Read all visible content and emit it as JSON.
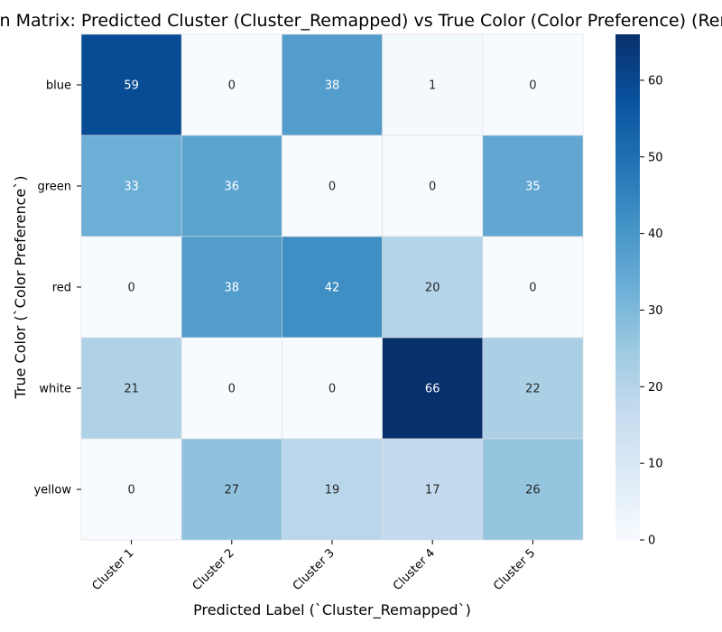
{
  "chart_data": {
    "type": "heatmap",
    "title": "Confusion Matrix: Predicted Cluster (Cluster_Remapped) vs True Color (Color Preference) (Remapped)",
    "xlabel": "Predicted Label (`Cluster_Remapped`)",
    "ylabel": "True Color (`Color Preference`)",
    "x_categories": [
      "Cluster 1",
      "Cluster 2",
      "Cluster 3",
      "Cluster 4",
      "Cluster 5"
    ],
    "y_categories": [
      "blue",
      "green",
      "red",
      "white",
      "yellow"
    ],
    "values": [
      [
        59,
        0,
        38,
        1,
        0
      ],
      [
        33,
        36,
        0,
        0,
        35
      ],
      [
        0,
        38,
        42,
        20,
        0
      ],
      [
        21,
        0,
        0,
        66,
        22
      ],
      [
        0,
        27,
        19,
        17,
        26
      ]
    ],
    "colormap": "Blues",
    "vmin": 0,
    "vmax": 66,
    "colorbar_ticks": [
      0,
      10,
      20,
      30,
      40,
      50,
      60
    ],
    "annotated": true
  }
}
